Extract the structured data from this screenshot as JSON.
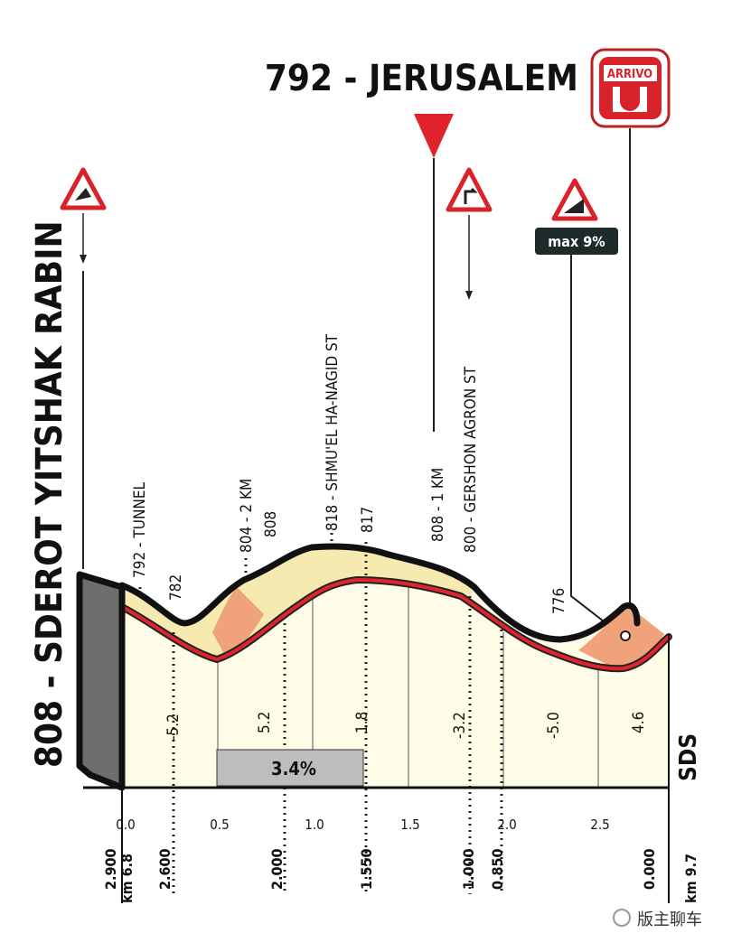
{
  "header": {
    "title": "792 - JERUSALEM",
    "finish_sign": "ARRIVO"
  },
  "start": {
    "label": "808 - SDEROT YITSHAK RABIN"
  },
  "points": [
    {
      "label": "792 - TUNNEL"
    },
    {
      "label": "782"
    },
    {
      "label": "804 - 2 KM"
    },
    {
      "label": "808"
    },
    {
      "label": "818 - SHMU'EL HA-NAGID ST"
    },
    {
      "label": "817"
    },
    {
      "label": "808 - 1 KM"
    },
    {
      "label": "800 - GERSHON AGRON ST"
    },
    {
      "label": "776"
    }
  ],
  "max_gradient": "max 9%",
  "gradients": [
    "-5.2",
    "5.2",
    "1.8",
    "-3.2",
    "-5.0",
    "4.6"
  ],
  "average_gradient": "3.4%",
  "brand": "SDS",
  "distance_ticks": [
    "0.0",
    "0.5",
    "1.0",
    "1.5",
    "2.0",
    "2.5"
  ],
  "remaining": [
    "2.900",
    "2.600",
    "2.000",
    "1.550",
    "1.000",
    "0.850",
    "0.000"
  ],
  "km_start": "km 6.8",
  "km_end": "km 9.7",
  "watermark": "版主聊车"
}
